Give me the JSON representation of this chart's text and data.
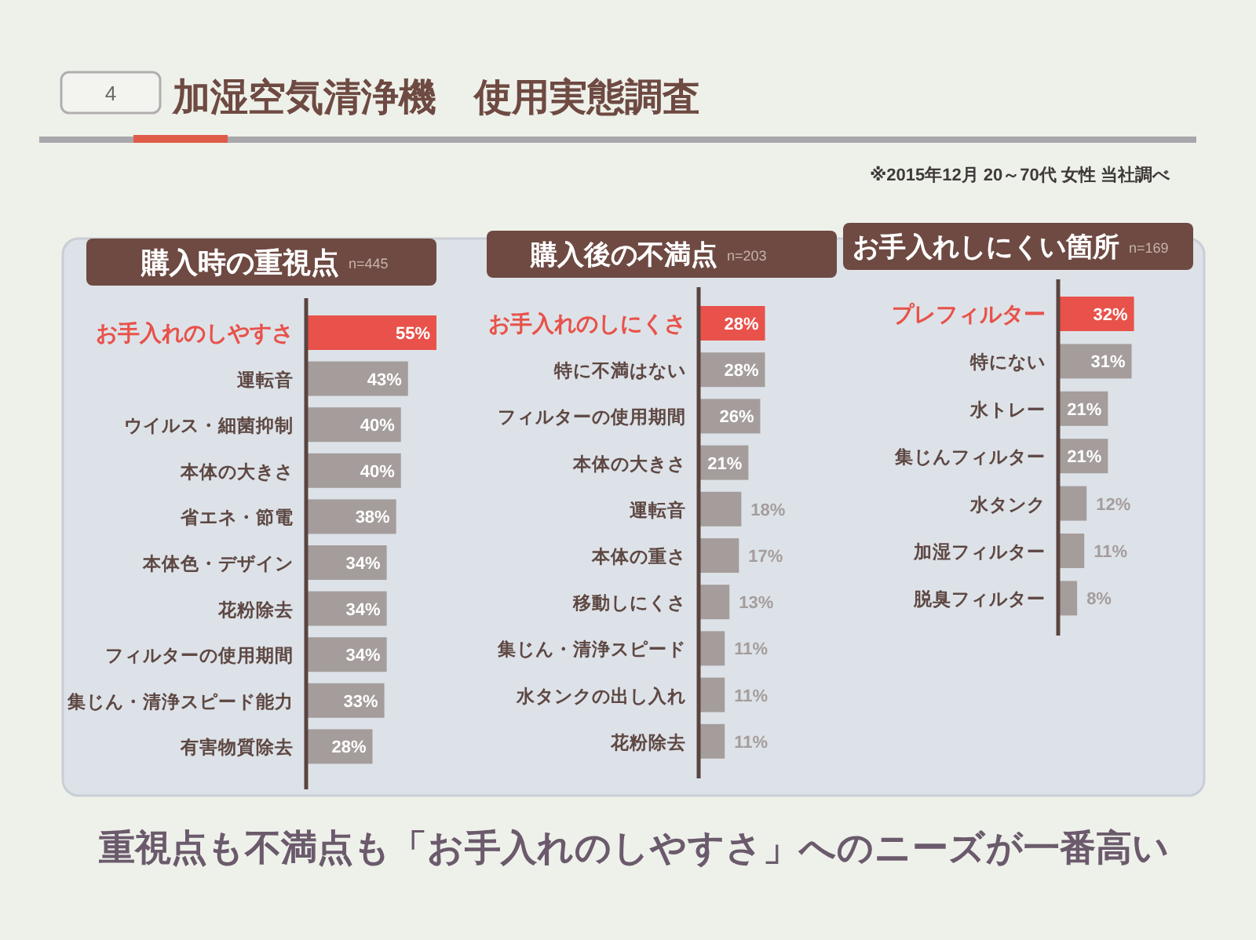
{
  "chart_data": [
    {
      "type": "other",
      "title": "加湿空気清浄機　使用実態調査",
      "annotations": [
        "4",
        "※2015年12月 20～70代 女性 当社調べ",
        "重視点も不満点も「お手入れのしやすさ」へのニーズが一番高い"
      ]
    },
    {
      "type": "bar",
      "orientation": "horizontal",
      "title": "購入時の重視点",
      "subtitle": "n=445",
      "categories": [
        "お手入れのしやすさ",
        "運転音",
        "ウイルス・細菌抑制",
        "本体の大きさ",
        "省エネ・節電",
        "本体色・デザイン",
        "花粉除去",
        "フィルターの使用期間",
        "集じん・清浄スピード能力",
        "有害物質除去"
      ],
      "values": [
        55,
        43,
        40,
        40,
        38,
        34,
        34,
        34,
        33,
        28
      ],
      "colors": [
        "#e8524a",
        "#a49d9c",
        "#a49d9c",
        "#a49d9c",
        "#a49d9c",
        "#a49d9c",
        "#a49d9c",
        "#a49d9c",
        "#a49d9c",
        "#a49d9c"
      ],
      "value_labels": [
        "55%",
        "43%",
        "40%",
        "40%",
        "38%",
        "34%",
        "34%",
        "34%",
        "33%",
        "28%"
      ]
    },
    {
      "type": "bar",
      "orientation": "horizontal",
      "title": "購入後の不満点",
      "subtitle": "n=203",
      "categories": [
        "お手入れのしにくさ",
        "特に不満はない",
        "フィルターの使用期間",
        "本体の大きさ",
        "運転音",
        "本体の重さ",
        "移動しにくさ",
        "集じん・清浄スピード",
        "水タンクの出し入れ",
        "花粉除去"
      ],
      "values": [
        28,
        28,
        26,
        21,
        18,
        17,
        13,
        11,
        11,
        11
      ],
      "colors": [
        "#e8524a",
        "#a49d9c",
        "#a49d9c",
        "#a49d9c",
        "#a49d9c",
        "#a49d9c",
        "#a49d9c",
        "#a49d9c",
        "#a49d9c",
        "#a49d9c"
      ],
      "value_labels": [
        "28%",
        "28%",
        "26%",
        "21%",
        "18%",
        "17%",
        "13%",
        "11%",
        "11%",
        "11%"
      ]
    },
    {
      "type": "bar",
      "orientation": "horizontal",
      "title": "お手入れしにくい箇所",
      "subtitle": "n=169",
      "categories": [
        "プレフィルター",
        "特にない",
        "水トレー",
        "集じんフィルター",
        "水タンク",
        "加湿フィルター",
        "脱臭フィルター"
      ],
      "values": [
        32,
        31,
        21,
        21,
        12,
        11,
        8
      ],
      "colors": [
        "#e8524a",
        "#a49d9c",
        "#a49d9c",
        "#a49d9c",
        "#a49d9c",
        "#a49d9c",
        "#a49d9c"
      ],
      "value_labels": [
        "32%",
        "31%",
        "21%",
        "21%",
        "12%",
        "11%",
        "8%"
      ]
    }
  ]
}
